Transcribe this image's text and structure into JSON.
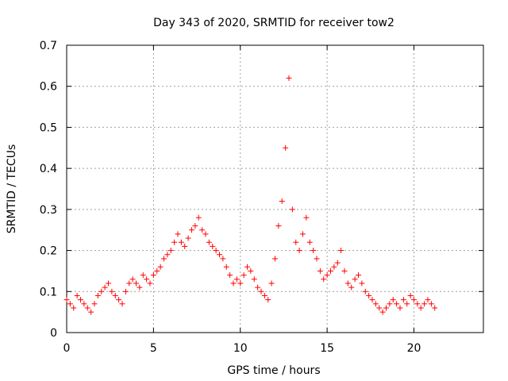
{
  "chart_data": {
    "type": "scatter",
    "title": "Day 343 of 2020, SRMTID for receiver tow2",
    "xlabel": "GPS time / hours",
    "ylabel": "SRMTID / TECUs",
    "xlim": [
      0,
      24
    ],
    "ylim": [
      0,
      0.7
    ],
    "xticks": [
      0,
      5,
      10,
      15,
      20
    ],
    "yticks": [
      0,
      0.1,
      0.2,
      0.3,
      0.4,
      0.5,
      0.6,
      0.7
    ],
    "xtick_labels": [
      "0",
      "5",
      "10",
      "15",
      "20"
    ],
    "ytick_labels": [
      "0",
      "0.1",
      "0.2",
      "0.3",
      "0.4",
      "0.5",
      "0.6",
      "0.7"
    ],
    "grid": true,
    "marker": "+",
    "marker_color": "#ff0000",
    "series": [
      {
        "name": "tow2",
        "x": [
          0.0,
          0.2,
          0.4,
          0.6,
          0.8,
          1.0,
          1.2,
          1.4,
          1.6,
          1.8,
          2.0,
          2.2,
          2.4,
          2.6,
          2.8,
          3.0,
          3.2,
          3.4,
          3.6,
          3.8,
          4.0,
          4.2,
          4.4,
          4.6,
          4.8,
          5.0,
          5.2,
          5.4,
          5.6,
          5.8,
          6.0,
          6.2,
          6.4,
          6.6,
          6.8,
          7.0,
          7.2,
          7.4,
          7.6,
          7.8,
          8.0,
          8.2,
          8.4,
          8.6,
          8.8,
          9.0,
          9.2,
          9.4,
          9.6,
          9.8,
          10.0,
          10.2,
          10.4,
          10.6,
          10.8,
          11.0,
          11.2,
          11.4,
          11.6,
          11.8,
          12.0,
          12.2,
          12.4,
          12.6,
          12.8,
          13.0,
          13.2,
          13.4,
          13.6,
          13.8,
          14.0,
          14.2,
          14.4,
          14.6,
          14.8,
          15.0,
          15.2,
          15.4,
          15.6,
          15.8,
          16.0,
          16.2,
          16.4,
          16.6,
          16.8,
          17.0,
          17.2,
          17.4,
          17.6,
          17.8,
          18.0,
          18.2,
          18.4,
          18.6,
          18.8,
          19.0,
          19.2,
          19.4,
          19.6,
          19.8,
          20.0,
          20.2,
          20.4,
          20.6,
          20.8,
          21.0,
          21.2
        ],
        "y": [
          0.08,
          0.07,
          0.06,
          0.09,
          0.08,
          0.07,
          0.06,
          0.05,
          0.07,
          0.09,
          0.1,
          0.11,
          0.12,
          0.1,
          0.09,
          0.08,
          0.07,
          0.1,
          0.12,
          0.13,
          0.12,
          0.11,
          0.14,
          0.13,
          0.12,
          0.14,
          0.15,
          0.16,
          0.18,
          0.19,
          0.2,
          0.22,
          0.24,
          0.22,
          0.21,
          0.23,
          0.25,
          0.26,
          0.28,
          0.25,
          0.24,
          0.22,
          0.21,
          0.2,
          0.19,
          0.18,
          0.16,
          0.14,
          0.12,
          0.13,
          0.12,
          0.14,
          0.16,
          0.15,
          0.13,
          0.11,
          0.1,
          0.09,
          0.08,
          0.12,
          0.18,
          0.26,
          0.32,
          0.45,
          0.62,
          0.3,
          0.22,
          0.2,
          0.24,
          0.28,
          0.22,
          0.2,
          0.18,
          0.15,
          0.13,
          0.14,
          0.15,
          0.16,
          0.17,
          0.2,
          0.15,
          0.12,
          0.11,
          0.13,
          0.14,
          0.12,
          0.1,
          0.09,
          0.08,
          0.07,
          0.06,
          0.05,
          0.06,
          0.07,
          0.08,
          0.07,
          0.06,
          0.08,
          0.07,
          0.09,
          0.08,
          0.07,
          0.06,
          0.07,
          0.08,
          0.07,
          0.06
        ]
      }
    ]
  }
}
